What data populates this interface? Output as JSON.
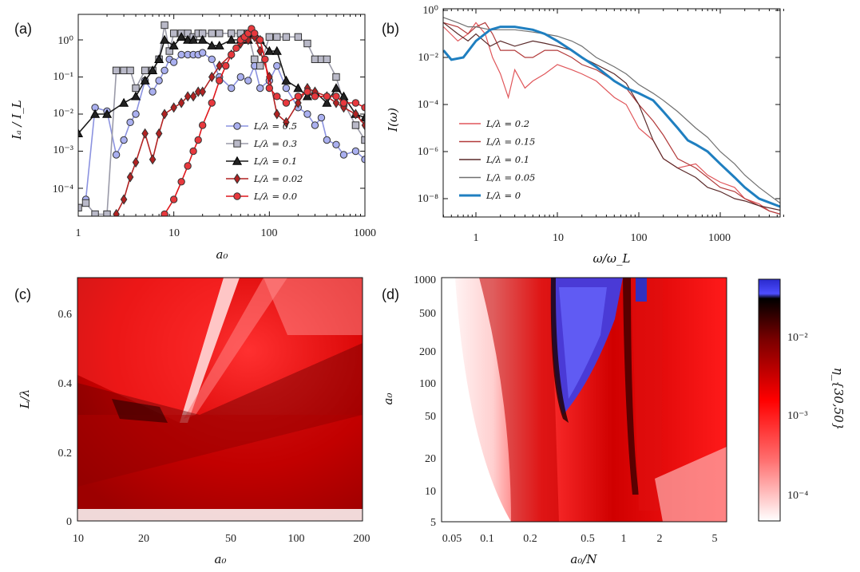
{
  "panels": {
    "a": {
      "label": "(a)",
      "xlabel": "a₀",
      "ylabel": "Iₐ / I_L",
      "x_ticks": [
        "1",
        "10",
        "100",
        "1000"
      ],
      "y_ticks": [
        "10⁰",
        "10⁻¹",
        "10⁻²",
        "10⁻³",
        "10⁻⁴"
      ],
      "legend": [
        "L/λ = 0.5",
        "L/λ = 0.3",
        "L/λ = 0.1",
        "L/λ = 0.02",
        "L/λ = 0.0"
      ]
    },
    "b": {
      "label": "(b)",
      "xlabel": "ω/ω_L",
      "ylabel": "I(ω)",
      "x_ticks": [
        "1",
        "10",
        "100",
        "1000"
      ],
      "y_ticks": [
        "10⁰",
        "10⁻²",
        "10⁻⁴",
        "10⁻⁶",
        "10⁻⁸"
      ],
      "legend": [
        "L/λ = 0.2",
        "L/λ = 0.15",
        "L/λ = 0.1",
        "L/λ = 0.05",
        "L/λ = 0"
      ]
    },
    "c": {
      "label": "(c)",
      "xlabel": "a₀",
      "ylabel": "L/λ",
      "x_ticks": [
        "10",
        "20",
        "50",
        "100",
        "200"
      ],
      "y_ticks": [
        "0",
        "0.2",
        "0.4",
        "0.6"
      ]
    },
    "d": {
      "label": "(d)",
      "xlabel": "a₀/N",
      "ylabel": "a₀",
      "x_ticks": [
        "0.05",
        "0.1",
        "0.2",
        "0.5",
        "1",
        "2",
        "5"
      ],
      "y_ticks": [
        "1000",
        "500",
        "200",
        "100",
        "50",
        "20",
        "10",
        "5"
      ],
      "colorbar_ticks": [
        "10⁻²",
        "10⁻³",
        "10⁻⁴"
      ],
      "colorbar_label": "η_{30,50}"
    }
  },
  "colors": {
    "L05": "#8c93e0",
    "L03": "#9a9aa8",
    "L01": "#1a1a1a",
    "L002": "#b22222",
    "L00": "#e0161b",
    "b_L02": "#e0565a",
    "b_L015": "#b23a3a",
    "b_L01": "#5a2a2a",
    "b_L005": "#707070",
    "b_L0": "#1f7fc0"
  },
  "chart_data": [
    {
      "type": "line",
      "panel": "a",
      "xscale": "log",
      "yscale": "log",
      "xlim": [
        1,
        1000
      ],
      "ylim": [
        2e-05,
        5
      ],
      "series": [
        {
          "name": "L/λ = 0.5",
          "x": [
            1.2,
            1.5,
            2,
            2.5,
            3,
            3.5,
            4,
            5,
            6,
            7,
            8,
            9,
            10,
            12,
            14,
            16,
            18,
            20,
            25,
            30,
            40,
            50,
            60,
            70,
            80,
            100,
            120,
            150,
            200,
            250,
            300,
            350,
            400,
            500,
            600,
            800,
            1000
          ],
          "y": [
            5e-05,
            0.015,
            0.012,
            0.0008,
            0.002,
            0.006,
            0.01,
            0.08,
            0.04,
            0.08,
            0.15,
            0.3,
            0.25,
            0.4,
            0.4,
            0.4,
            0.4,
            0.45,
            0.3,
            0.1,
            0.05,
            0.1,
            0.08,
            0.2,
            0.05,
            0.08,
            0.2,
            0.05,
            0.015,
            0.01,
            0.005,
            0.008,
            0.002,
            0.0015,
            0.0008,
            0.001,
            0.0006
          ]
        },
        {
          "name": "L/λ = 0.3",
          "x": [
            1,
            1.2,
            1.5,
            2,
            2.5,
            3,
            3.5,
            4,
            5,
            6,
            7,
            8,
            9,
            10,
            12,
            14,
            16,
            18,
            20,
            25,
            30,
            40,
            50,
            60,
            70,
            80,
            100,
            120,
            150,
            200,
            250,
            300,
            350,
            400,
            500,
            600,
            800,
            1000
          ],
          "y": [
            3e-05,
            4e-05,
            2e-05,
            2e-05,
            0.15,
            0.15,
            0.15,
            0.05,
            0.15,
            0.15,
            0.3,
            2.5,
            0.5,
            1.5,
            1.5,
            1.5,
            1.2,
            1.5,
            1.5,
            1.5,
            1.5,
            1.5,
            1.5,
            1.5,
            0.3,
            0.2,
            1.2,
            1.2,
            1.2,
            1.2,
            0.8,
            0.3,
            0.3,
            0.3,
            0.1,
            0.02,
            0.005,
            0.002
          ]
        },
        {
          "name": "L/λ = 0.1",
          "x": [
            1,
            1.5,
            2,
            3,
            4,
            5,
            6,
            7,
            8,
            10,
            12,
            14,
            16,
            20,
            25,
            30,
            40,
            50,
            60,
            70,
            80,
            100,
            120,
            150,
            200,
            250,
            300,
            400,
            500,
            600,
            800,
            1000
          ],
          "y": [
            0.003,
            0.01,
            0.01,
            0.02,
            0.03,
            0.08,
            0.15,
            0.3,
            1.0,
            0.7,
            1.2,
            1.0,
            1.0,
            1.0,
            0.7,
            0.7,
            1.0,
            1.0,
            1.0,
            1.5,
            1.0,
            0.5,
            0.5,
            0.08,
            0.05,
            0.03,
            0.04,
            0.02,
            0.05,
            0.03,
            0.01,
            0.008
          ]
        },
        {
          "name": "L/λ = 0.02",
          "x": [
            2.5,
            3,
            3.5,
            4,
            5,
            6,
            7,
            8,
            10,
            12,
            14,
            16,
            18,
            20,
            25,
            30,
            40,
            50,
            60,
            70,
            80,
            100,
            120,
            150,
            200,
            250,
            300,
            400,
            500,
            600,
            800,
            1000
          ],
          "y": [
            2e-05,
            5e-05,
            0.0002,
            0.0005,
            0.003,
            0.0006,
            0.003,
            0.01,
            0.015,
            0.02,
            0.03,
            0.03,
            0.04,
            0.04,
            0.1,
            0.2,
            0.4,
            0.8,
            1.0,
            1.2,
            0.5,
            0.1,
            0.01,
            0.006,
            0.02,
            0.05,
            0.04,
            0.03,
            0.02,
            0.015,
            0.01,
            0.005
          ]
        },
        {
          "name": "L/λ = 0.0",
          "x": [
            8,
            10,
            12,
            14,
            16,
            18,
            20,
            25,
            30,
            35,
            40,
            45,
            50,
            55,
            60,
            65,
            70,
            80,
            90,
            100,
            120,
            150,
            200,
            250,
            300,
            400,
            500,
            600,
            800,
            1000
          ],
          "y": [
            2e-05,
            5e-05,
            0.00015,
            0.0004,
            0.001,
            0.002,
            0.005,
            0.02,
            0.08,
            0.2,
            0.4,
            0.6,
            1.0,
            1.2,
            1.5,
            2.0,
            1.5,
            1.0,
            0.3,
            0.05,
            0.03,
            0.02,
            0.03,
            0.04,
            0.03,
            0.03,
            0.03,
            0.02,
            0.02,
            0.015
          ]
        }
      ]
    },
    {
      "type": "line",
      "panel": "b",
      "xscale": "log",
      "yscale": "log",
      "xlim": [
        0.4,
        6000
      ],
      "ylim": [
        1e-09,
        1
      ],
      "series": [
        {
          "name": "L/λ = 0.2",
          "x": [
            0.4,
            0.6,
            0.8,
            1,
            1.3,
            1.6,
            2,
            2.5,
            3,
            4,
            5,
            7,
            10,
            15,
            20,
            30,
            50,
            70,
            100,
            150,
            200,
            300,
            500,
            700,
            1000,
            1500,
            2000,
            3000,
            4000,
            6000
          ],
          "y": [
            0.2,
            0.05,
            0.1,
            0.3,
            0.1,
            0.01,
            0.002,
            0.0002,
            0.003,
            0.0005,
            0.001,
            0.002,
            0.005,
            0.003,
            0.002,
            0.001,
            0.0002,
            0.0001,
            1e-05,
            3e-06,
            5e-07,
            2e-07,
            3e-07,
            1e-07,
            5e-08,
            3e-08,
            1e-08,
            6e-09,
            3e-09,
            2e-09
          ]
        },
        {
          "name": "L/λ = 0.15",
          "x": [
            0.4,
            0.6,
            0.8,
            1,
            1.3,
            1.6,
            2,
            3,
            4,
            5,
            7,
            10,
            15,
            20,
            30,
            50,
            70,
            100,
            150,
            200,
            300,
            500,
            700,
            1000,
            1500,
            2000,
            3000,
            4000,
            6000
          ],
          "y": [
            0.3,
            0.2,
            0.1,
            0.2,
            0.3,
            0.1,
            0.02,
            0.02,
            0.01,
            0.01,
            0.02,
            0.02,
            0.01,
            0.005,
            0.003,
            0.001,
            0.0005,
            0.0001,
            2e-05,
            5e-06,
            5e-07,
            2e-07,
            8e-08,
            3e-08,
            2e-08,
            1e-08,
            5e-09,
            3e-09,
            2e-09
          ]
        },
        {
          "name": "L/λ = 0.1",
          "x": [
            0.4,
            0.6,
            0.8,
            1,
            1.5,
            2,
            3,
            5,
            7,
            10,
            15,
            20,
            30,
            50,
            70,
            100,
            150,
            200,
            300,
            500,
            700,
            1000,
            1500,
            2000,
            3000,
            6000
          ],
          "y": [
            0.3,
            0.1,
            0.05,
            0.1,
            0.03,
            0.05,
            0.03,
            0.05,
            0.04,
            0.03,
            0.02,
            0.01,
            0.005,
            0.002,
            0.0008,
            0.0001,
            3e-06,
            5e-07,
            2e-07,
            8e-08,
            3e-08,
            2e-08,
            1e-08,
            8e-09,
            5e-09,
            3e-09
          ]
        },
        {
          "name": "L/λ = 0.05",
          "x": [
            0.4,
            0.6,
            0.8,
            1,
            1.5,
            2,
            3,
            5,
            7,
            10,
            15,
            20,
            30,
            50,
            70,
            100,
            150,
            200,
            300,
            500,
            700,
            1000,
            1500,
            2000,
            3000,
            6000
          ],
          "y": [
            0.5,
            0.3,
            0.2,
            0.2,
            0.15,
            0.15,
            0.15,
            0.12,
            0.1,
            0.08,
            0.05,
            0.03,
            0.01,
            0.004,
            0.002,
            0.0007,
            0.0003,
            0.00015,
            5e-05,
            1e-05,
            4e-06,
            1e-06,
            3e-07,
            1e-07,
            3e-08,
            5e-09
          ]
        },
        {
          "name": "L/λ = 0",
          "x": [
            0.4,
            0.5,
            0.7,
            1,
            1.5,
            2,
            3,
            5,
            7,
            10,
            15,
            20,
            30,
            50,
            70,
            100,
            150,
            200,
            300,
            400,
            500,
            700,
            1000,
            1500,
            2000,
            3000,
            6000
          ],
          "y": [
            0.02,
            0.008,
            0.01,
            0.05,
            0.15,
            0.2,
            0.2,
            0.15,
            0.1,
            0.05,
            0.02,
            0.01,
            0.004,
            0.001,
            0.0005,
            0.0003,
            0.00015,
            5e-05,
            1e-05,
            3e-06,
            2e-06,
            1e-06,
            3e-07,
            8e-08,
            3e-08,
            1e-08,
            4e-09
          ]
        }
      ]
    },
    {
      "type": "heatmap",
      "panel": "c",
      "xscale": "log",
      "xlim": [
        10,
        200
      ],
      "ylim": [
        0,
        0.7
      ]
    },
    {
      "type": "heatmap",
      "panel": "d",
      "xscale": "log",
      "yscale": "log",
      "xlim": [
        0.05,
        6.5
      ],
      "ylim": [
        5,
        1000
      ],
      "colorscale": "log",
      "zlim": [
        5e-05,
        0.05
      ]
    }
  ]
}
